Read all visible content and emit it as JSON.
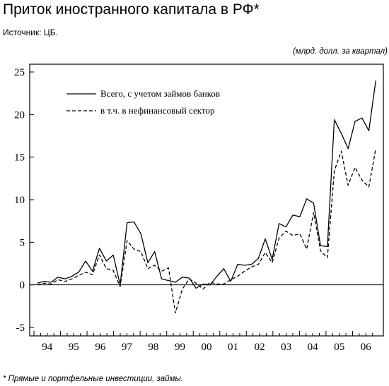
{
  "title": "Приток иностранного капитала в РФ*",
  "source": "Источник: ЦБ.",
  "units": "(млрд. долл. за квартал)",
  "footnote": "* Прямые и портфельные инвестиции, займы.",
  "chart_data": {
    "type": "line",
    "ylim": [
      -5,
      25
    ],
    "yticks": [
      -5,
      0,
      5,
      10,
      15,
      20,
      25
    ],
    "ytick_labels": [
      "-5",
      "0",
      "5",
      "10",
      "15",
      "20",
      "25"
    ],
    "xlim": [
      1994,
      2007
    ],
    "xtick_labels": [
      "94",
      "95",
      "96",
      "97",
      "98",
      "99",
      "00",
      "01",
      "02",
      "03",
      "04",
      "05",
      "06"
    ],
    "grid": false,
    "legend_position": "top-left",
    "series": [
      {
        "name": "Всего, с учетом займов банков",
        "style": "solid",
        "color": "#000000",
        "values": [
          0.2,
          0.4,
          0.3,
          0.9,
          0.7,
          1.0,
          1.5,
          2.8,
          1.6,
          4.3,
          2.8,
          3.5,
          0.0,
          7.3,
          7.4,
          6.0,
          2.6,
          3.9,
          0.7,
          0.5,
          0.3,
          0.9,
          0.8,
          -0.4,
          0.1,
          0.0,
          1.0,
          1.9,
          0.4,
          2.4,
          2.3,
          2.4,
          3.1,
          5.4,
          3.0,
          7.2,
          6.8,
          8.2,
          8.0,
          10.1,
          9.6,
          4.6,
          4.5,
          19.4,
          17.8,
          16.0,
          19.2,
          19.6,
          18.1,
          24.0
        ]
      },
      {
        "name": "в т.ч. в нефинансовый сектор",
        "style": "dashed",
        "color": "#000000",
        "values": [
          0.0,
          0.2,
          0.1,
          0.6,
          0.4,
          0.7,
          1.1,
          1.5,
          1.2,
          3.5,
          1.9,
          1.7,
          -0.2,
          5.2,
          4.2,
          3.9,
          1.9,
          2.3,
          1.6,
          2.0,
          -3.3,
          -0.5,
          0.7,
          0.2,
          -0.5,
          0.3,
          0.1,
          0.1,
          0.6,
          1.0,
          1.6,
          2.1,
          2.4,
          3.8,
          2.6,
          5.5,
          6.3,
          5.8,
          6.0,
          4.2,
          8.5,
          4.0,
          3.2,
          13.4,
          15.7,
          11.7,
          13.8,
          12.3,
          11.5,
          16.0
        ]
      }
    ]
  }
}
